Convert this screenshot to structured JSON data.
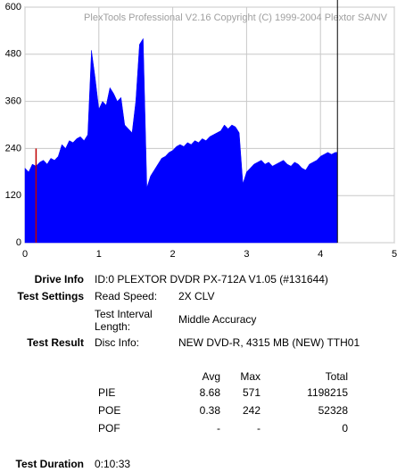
{
  "chart_data": {
    "type": "area",
    "watermark": "PlexTools Professional V2.16 Copyright (C) 1999-2004 Plextor SA/NV",
    "x": [
      0,
      0.05,
      0.1,
      0.15,
      0.2,
      0.25,
      0.3,
      0.35,
      0.4,
      0.45,
      0.5,
      0.55,
      0.6,
      0.65,
      0.7,
      0.75,
      0.8,
      0.85,
      0.9,
      0.95,
      1.0,
      1.05,
      1.1,
      1.15,
      1.2,
      1.25,
      1.3,
      1.35,
      1.4,
      1.45,
      1.5,
      1.55,
      1.6,
      1.65,
      1.7,
      1.75,
      1.8,
      1.85,
      1.9,
      1.95,
      2.0,
      2.05,
      2.1,
      2.15,
      2.2,
      2.25,
      2.3,
      2.35,
      2.4,
      2.45,
      2.5,
      2.55,
      2.6,
      2.65,
      2.7,
      2.75,
      2.8,
      2.85,
      2.9,
      2.95,
      3.0,
      3.05,
      3.1,
      3.15,
      3.2,
      3.25,
      3.3,
      3.35,
      3.4,
      3.45,
      3.5,
      3.55,
      3.6,
      3.65,
      3.7,
      3.75,
      3.8,
      3.85,
      3.9,
      3.95,
      4.0,
      4.05,
      4.1,
      4.15,
      4.2,
      4.23
    ],
    "values": [
      190,
      180,
      200,
      195,
      205,
      210,
      200,
      215,
      210,
      220,
      250,
      240,
      260,
      255,
      265,
      270,
      260,
      275,
      490,
      420,
      340,
      360,
      350,
      395,
      380,
      360,
      370,
      300,
      290,
      280,
      360,
      505,
      520,
      140,
      170,
      185,
      200,
      215,
      220,
      230,
      235,
      245,
      250,
      245,
      255,
      250,
      260,
      255,
      265,
      260,
      270,
      275,
      280,
      285,
      300,
      290,
      300,
      295,
      280,
      150,
      180,
      190,
      200,
      205,
      210,
      200,
      205,
      195,
      200,
      205,
      210,
      200,
      195,
      205,
      200,
      190,
      185,
      200,
      205,
      210,
      220,
      225,
      230,
      225,
      230,
      230
    ],
    "color": "#0000ff",
    "spikes": [
      {
        "x": 0.15,
        "value": 240,
        "color": "#c00000"
      }
    ],
    "cursor_x": 4.23,
    "xlim": [
      0,
      5
    ],
    "xticks": [
      0,
      1,
      2,
      3,
      4,
      5
    ],
    "ylim": [
      0,
      600
    ],
    "yticks": [
      0,
      120,
      240,
      360,
      480,
      600
    ],
    "grid": true
  },
  "document": {
    "drive_info": {
      "label": "Drive Info",
      "value": "ID:0 PLEXTOR DVDR PX-712A V1.05 (#131644)"
    },
    "test_settings": {
      "label": "Test Settings",
      "read_speed_label": "Read Speed:",
      "read_speed": "2X CLV",
      "interval_label": "Test Interval Length:",
      "interval": "Middle Accuracy"
    },
    "test_result": {
      "label": "Test Result",
      "disc_label": "Disc Info:",
      "disc": "NEW DVD-R, 4315 MB (NEW) TTH01"
    },
    "table": {
      "header": [
        "Avg",
        "Max",
        "Total"
      ],
      "rows": [
        [
          "PIE",
          "8.68",
          "571",
          "1198215"
        ],
        [
          "POE",
          "0.38",
          "242",
          "52328"
        ],
        [
          "POF",
          "-",
          "-",
          "0"
        ]
      ]
    },
    "test_duration": {
      "label": "Test Duration",
      "value": "0:10:33"
    }
  }
}
